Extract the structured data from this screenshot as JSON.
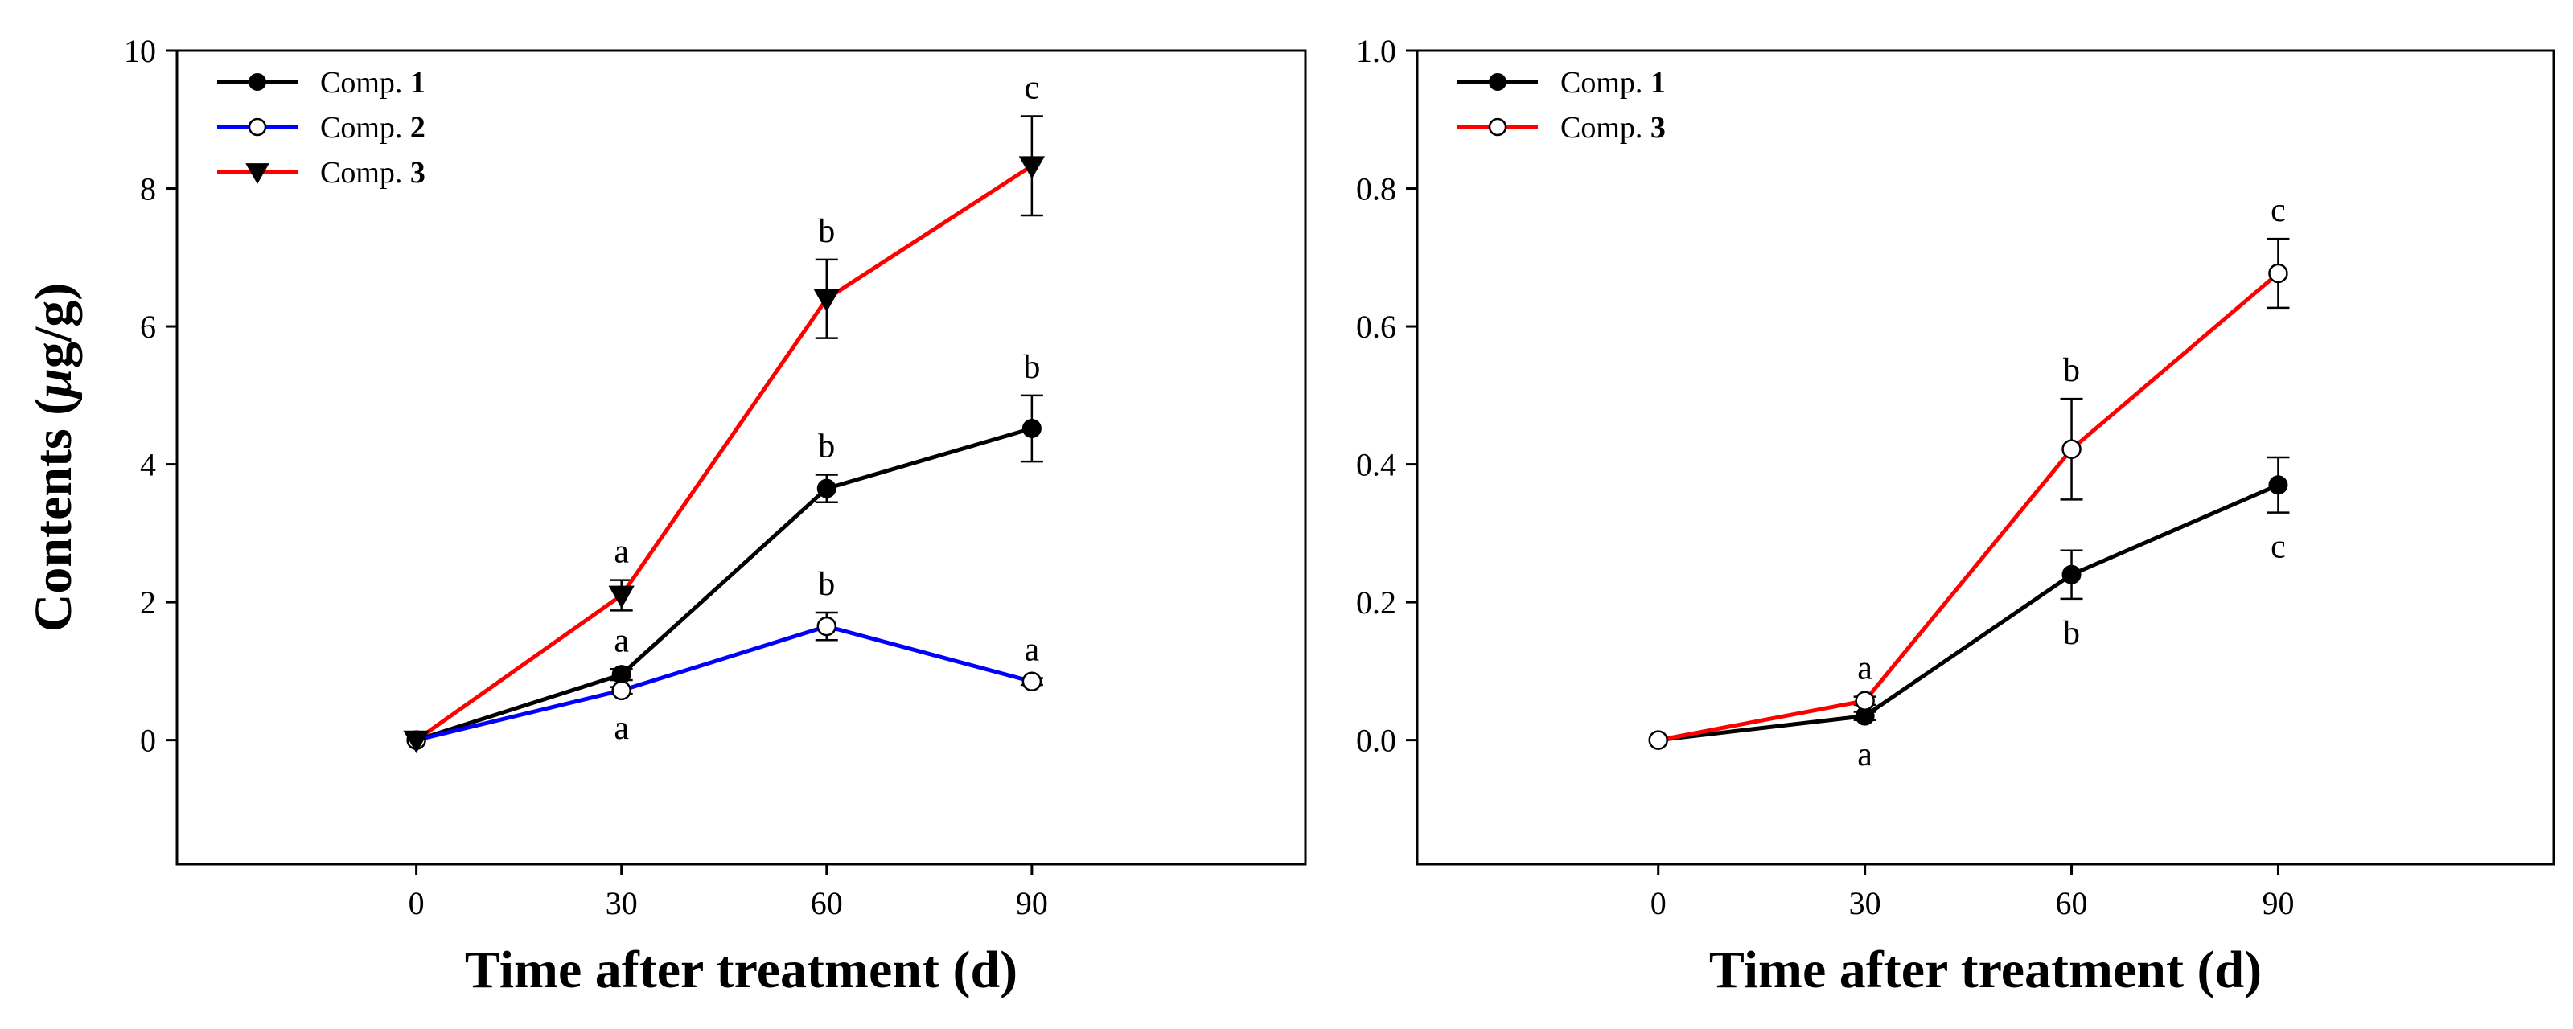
{
  "chart_data": [
    {
      "type": "line",
      "panel": "left",
      "xlabel": "Time after treatment (d)",
      "ylabel_prefix": "Contents (",
      "ylabel_mu": "μ",
      "ylabel_suffix": "g/g)",
      "xlim": [
        -35,
        130
      ],
      "ylim": [
        -1.8,
        10
      ],
      "xticks": [
        0,
        30,
        60,
        90
      ],
      "yticks": [
        0,
        2,
        4,
        6,
        8,
        10
      ],
      "ytick_decimals": 0,
      "legend_position": "top-left",
      "series": [
        {
          "name_prefix": "Comp. ",
          "name_num": "1",
          "color": "#000000",
          "marker": "filled-circle",
          "x": [
            0,
            30,
            60,
            90
          ],
          "y": [
            0,
            0.95,
            3.65,
            4.52
          ],
          "err": [
            0,
            0.08,
            0.2,
            0.48
          ],
          "labels": [
            "",
            "a",
            "b",
            "b"
          ],
          "label_side": [
            "",
            "above",
            "above",
            "above"
          ]
        },
        {
          "name_prefix": "Comp. ",
          "name_num": "2",
          "color": "#0000ff",
          "marker": "open-circle",
          "x": [
            0,
            30,
            60,
            90
          ],
          "y": [
            0,
            0.72,
            1.65,
            0.85
          ],
          "err": [
            0,
            0.05,
            0.2,
            0.05
          ],
          "labels": [
            "",
            "a",
            "b",
            "a"
          ],
          "label_side": [
            "",
            "below",
            "above",
            "above"
          ]
        },
        {
          "name_prefix": "Comp. ",
          "name_num": "3",
          "color": "#ff0000",
          "marker": "filled-triangle-down",
          "x": [
            0,
            30,
            60,
            90
          ],
          "y": [
            0,
            2.1,
            6.4,
            8.33
          ],
          "err": [
            0,
            0.22,
            0.57,
            0.72
          ],
          "labels": [
            "",
            "a",
            "b",
            "c"
          ],
          "label_side": [
            "",
            "above",
            "above",
            "above"
          ]
        }
      ]
    },
    {
      "type": "line",
      "panel": "right",
      "xlabel": "Time after treatment (d)",
      "xlim": [
        -35,
        130
      ],
      "ylim": [
        -0.18,
        1.0
      ],
      "xticks": [
        0,
        30,
        60,
        90
      ],
      "yticks": [
        0.0,
        0.2,
        0.4,
        0.6,
        0.8,
        1.0
      ],
      "ytick_decimals": 1,
      "legend_position": "top-left",
      "series": [
        {
          "name_prefix": "Comp. ",
          "name_num": "1",
          "color": "#000000",
          "marker": "filled-circle",
          "x": [
            0,
            30,
            60,
            90
          ],
          "y": [
            0,
            0.035,
            0.24,
            0.37
          ],
          "err": [
            0,
            0.006,
            0.035,
            0.04
          ],
          "labels": [
            "",
            "a",
            "b",
            "c"
          ],
          "label_side": [
            "",
            "below",
            "below",
            "below"
          ]
        },
        {
          "name_prefix": "Comp. ",
          "name_num": "3",
          "color": "#ff0000",
          "marker": "open-circle",
          "x": [
            0,
            30,
            60,
            90
          ],
          "y": [
            0,
            0.057,
            0.422,
            0.677
          ],
          "err": [
            0,
            0.006,
            0.073,
            0.05
          ],
          "labels": [
            "",
            "a",
            "b",
            "c"
          ],
          "label_side": [
            "",
            "above",
            "above",
            "above"
          ]
        }
      ]
    }
  ]
}
